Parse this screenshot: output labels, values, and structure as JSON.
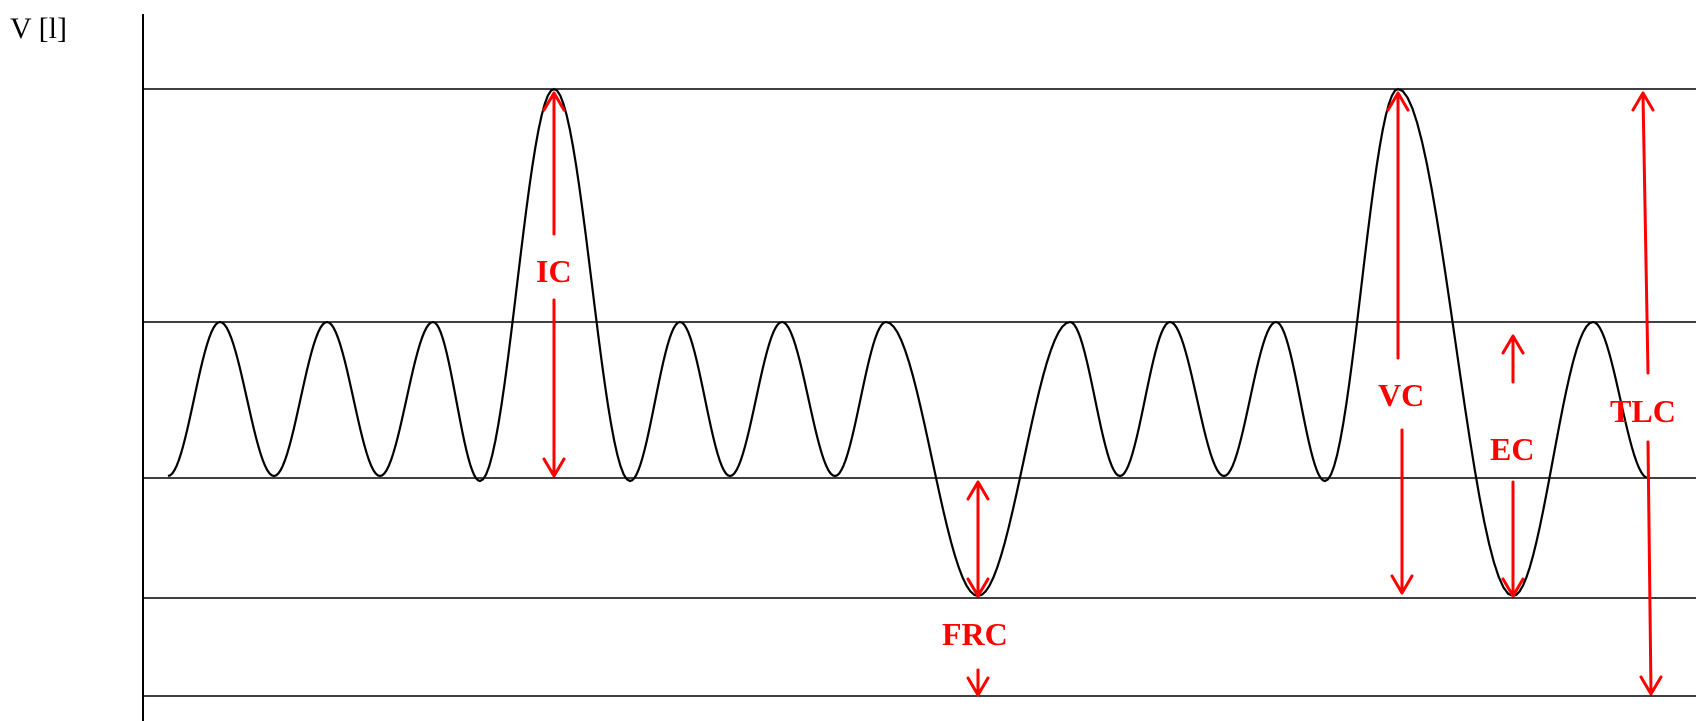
{
  "axis_label": "V [l]",
  "colors": {
    "curve": "#000000",
    "reference_lines": "#000000",
    "annotation": "#ff0000"
  },
  "labels": {
    "ic": "IC",
    "frc": "FRC",
    "vc": "VC",
    "ec": "EC",
    "tlc": "TLC"
  }
}
